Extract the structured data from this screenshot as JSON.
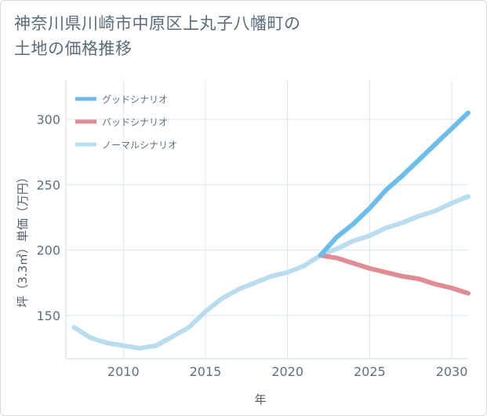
{
  "title_lines": [
    "神奈川県川崎市中原区上丸子八幡町の",
    "土地の価格推移"
  ],
  "chart_data": {
    "type": "line",
    "xlabel": "年",
    "ylabel": "坪（3.3㎡）単価（万円）",
    "xlim": [
      2006.5,
      2031
    ],
    "ylim": [
      117,
      330
    ],
    "xticks": [
      2010,
      2015,
      2020,
      2025,
      2030
    ],
    "yticks": [
      150,
      200,
      250,
      300
    ],
    "grid": true,
    "legend_position": "top-left",
    "series": [
      {
        "name": "グッドシナリオ",
        "color": "#6cbdec",
        "x": [
          2022,
          2023,
          2024,
          2025,
          2026,
          2027,
          2028,
          2029,
          2030,
          2031
        ],
        "y": [
          196,
          210,
          220,
          232,
          246,
          257,
          269,
          281,
          293,
          305
        ]
      },
      {
        "name": "バッドシナリオ",
        "color": "#df8c95",
        "x": [
          2022,
          2023,
          2024,
          2025,
          2026,
          2027,
          2028,
          2029,
          2030,
          2031
        ],
        "y": [
          196,
          194,
          190,
          186,
          183,
          180,
          178,
          174,
          171,
          167
        ]
      },
      {
        "name": "ノーマルシナリオ",
        "color": "#b9ddee",
        "x": [
          2007,
          2008,
          2009,
          2010,
          2011,
          2012,
          2013,
          2014,
          2015,
          2016,
          2017,
          2018,
          2019,
          2020,
          2021,
          2022,
          2023,
          2024,
          2025,
          2026,
          2027,
          2028,
          2029,
          2030,
          2031
        ],
        "y": [
          141,
          133,
          129,
          127,
          125,
          127,
          134,
          141,
          153,
          163,
          170,
          175,
          180,
          183,
          188,
          196,
          201,
          207,
          211,
          217,
          221,
          226,
          230,
          236,
          241
        ]
      }
    ]
  }
}
